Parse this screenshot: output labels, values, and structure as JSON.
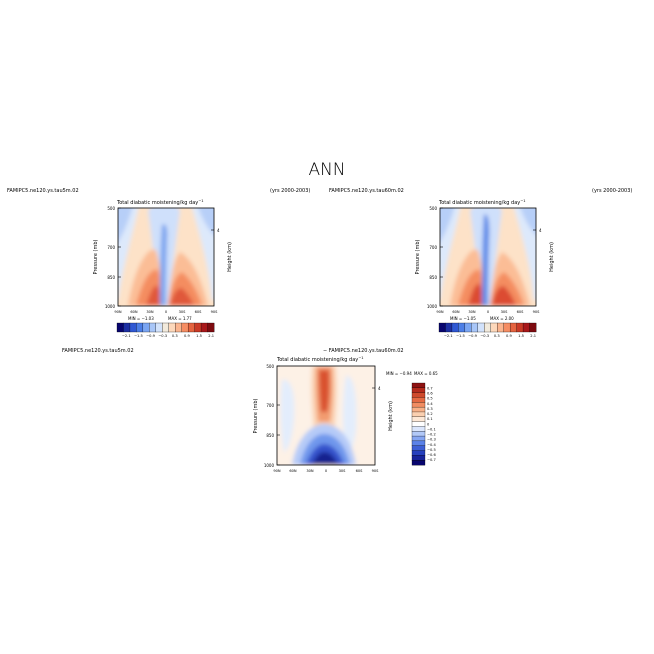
{
  "page": {
    "title": "ANN"
  },
  "palette_top": [
    "#08056e",
    "#1c2fa3",
    "#2f58d3",
    "#4c7ee6",
    "#7aa5f2",
    "#a8c6f8",
    "#d2e2fb",
    "#f2eadc",
    "#fdd8bb",
    "#fbb58f",
    "#f58d63",
    "#e4633f",
    "#c93a26",
    "#a8171a",
    "#7d0b10"
  ],
  "palette_diff": [
    "#08056e",
    "#17239a",
    "#2640bd",
    "#3d5fd5",
    "#5b82e8",
    "#86a6f2",
    "#b2c9f8",
    "#dbe6fc",
    "#ffffff",
    "#fde8d6",
    "#fbd0b0",
    "#f8b188",
    "#f18d62",
    "#e46a43",
    "#cf4a2c",
    "#b42a1c",
    "#8e1212"
  ],
  "charts": [
    {
      "id": "panel_left",
      "case": "FAMIPC5.ne120.ys.tau5m.02",
      "years": "(yrs 2000-2003)",
      "title": "Total diabatic moistening/kg day",
      "title_sup": "−1",
      "ylabel": "Pressure (mb)",
      "ylabel_right": "Height (km)",
      "right_tick": "4",
      "yticks": [
        "500",
        "700",
        "850",
        "1000"
      ],
      "xticks": [
        "90N",
        "60N",
        "30N",
        "0",
        "30S",
        "60S",
        "90S"
      ],
      "min_label": "MIN = −1.03",
      "max_label": "MAX = 1.77",
      "cbar_labels": [
        "−2.1",
        "−1.5",
        "−0.9",
        "−0.3",
        "0.3",
        "0.9",
        "1.5",
        "2.1"
      ]
    },
    {
      "id": "panel_right",
      "case": "FAMIPC5.ne120.ys.tau60m.02",
      "years": "(yrs 2000-2003)",
      "title": "Total diabatic moistening/kg day",
      "title_sup": "−1",
      "ylabel": "Pressure (mb)",
      "ylabel_right": "Height (km)",
      "right_tick": "4",
      "yticks": [
        "500",
        "700",
        "850",
        "1000"
      ],
      "xticks": [
        "90N",
        "60N",
        "30N",
        "0",
        "30S",
        "60S",
        "90S"
      ],
      "min_label": "MIN = −1.05",
      "max_label": "MAX = 2.00",
      "cbar_labels": [
        "−2.1",
        "−1.5",
        "−0.9",
        "−0.3",
        "0.3",
        "0.9",
        "1.5",
        "2.1"
      ]
    },
    {
      "id": "panel_diff",
      "case_left": "FAMIPC5.ne120.ys.tau5m.02",
      "case_right": "− FAMIPC5.ne120.ys.tau60m.02",
      "title": "Total diabatic moistening/kg day",
      "title_sup": "−1",
      "ylabel": "Pressure (mb)",
      "ylabel_right": "Height (km)",
      "right_tick": "4",
      "yticks": [
        "500",
        "700",
        "850",
        "1000"
      ],
      "xticks": [
        "90N",
        "60N",
        "30N",
        "0",
        "30S",
        "60S",
        "90S"
      ],
      "min_label": "MIN = −0.94",
      "max_label": "MAX = 0.65",
      "cbar_labels": [
        "0.7",
        "0.6",
        "0.5",
        "0.4",
        "0.3",
        "0.2",
        "0.1",
        "0",
        "−0.1",
        "−0.2",
        "−0.3",
        "−0.4",
        "−0.5",
        "−0.6",
        "−0.7"
      ]
    }
  ],
  "chart_data": [
    {
      "type": "heatmap",
      "title": "Total diabatic moistening/kg day⁻¹",
      "case": "FAMIPC5.ne120.ys.tau5m.02",
      "x_categories": [
        "90N",
        "60N",
        "30N",
        "0",
        "30S",
        "60S",
        "90S"
      ],
      "y_categories": [
        "500",
        "700",
        "850",
        "1000"
      ],
      "ylabel": "Pressure (mb)",
      "min": -1.03,
      "max": 1.77,
      "levels": [
        -2.1,
        -1.8,
        -1.5,
        -1.2,
        -0.9,
        -0.6,
        -0.3,
        0,
        0.3,
        0.6,
        0.9,
        1.2,
        1.5,
        1.8,
        2.1
      ]
    },
    {
      "type": "heatmap",
      "title": "Total diabatic moistening/kg day⁻¹",
      "case": "FAMIPC5.ne120.ys.tau60m.02",
      "x_categories": [
        "90N",
        "60N",
        "30N",
        "0",
        "30S",
        "60S",
        "90S"
      ],
      "y_categories": [
        "500",
        "700",
        "850",
        "1000"
      ],
      "ylabel": "Pressure (mb)",
      "min": -1.05,
      "max": 2.0,
      "levels": [
        -2.1,
        -1.8,
        -1.5,
        -1.2,
        -0.9,
        -0.6,
        -0.3,
        0,
        0.3,
        0.6,
        0.9,
        1.2,
        1.5,
        1.8,
        2.1
      ]
    },
    {
      "type": "heatmap",
      "title": "Total diabatic moistening/kg day⁻¹",
      "case": "FAMIPC5.ne120.ys.tau5m.02 − FAMIPC5.ne120.ys.tau60m.02",
      "x_categories": [
        "90N",
        "60N",
        "30N",
        "0",
        "30S",
        "60S",
        "90S"
      ],
      "y_categories": [
        "500",
        "700",
        "850",
        "1000"
      ],
      "ylabel": "Pressure (mb)",
      "min": -0.94,
      "max": 0.65,
      "levels": [
        0.7,
        0.6,
        0.5,
        0.4,
        0.3,
        0.2,
        0.1,
        0,
        -0.1,
        -0.2,
        -0.3,
        -0.4,
        -0.5,
        -0.6,
        -0.7
      ]
    }
  ]
}
